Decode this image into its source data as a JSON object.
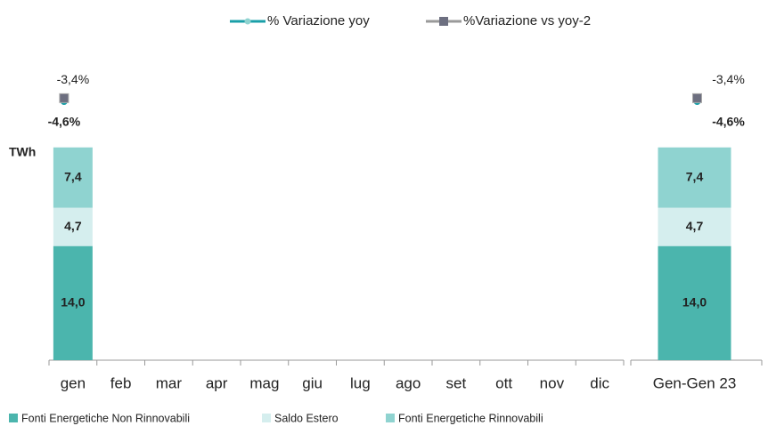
{
  "chart_data": {
    "type": "bar",
    "stacked": true,
    "y_label": "TWh",
    "categories": [
      "gen",
      "feb",
      "mar",
      "apr",
      "mag",
      "giu",
      "lug",
      "ago",
      "set",
      "ott",
      "nov",
      "dic",
      "Gen-Gen 23"
    ],
    "ylim": [
      0,
      30
    ],
    "y2lim": [
      -100,
      0
    ],
    "series": [
      {
        "name": "Fonti Energetiche Non Rinnovabili",
        "type": "bar",
        "color": "#4bb5ad",
        "values": [
          14.0,
          null,
          null,
          null,
          null,
          null,
          null,
          null,
          null,
          null,
          null,
          null,
          14.0
        ],
        "value_labels": [
          "14,0",
          null,
          null,
          null,
          null,
          null,
          null,
          null,
          null,
          null,
          null,
          null,
          "14,0"
        ]
      },
      {
        "name": "Saldo Estero",
        "type": "bar",
        "color": "#d5eeee",
        "values": [
          4.7,
          null,
          null,
          null,
          null,
          null,
          null,
          null,
          null,
          null,
          null,
          null,
          4.7
        ],
        "value_labels": [
          "4,7",
          null,
          null,
          null,
          null,
          null,
          null,
          null,
          null,
          null,
          null,
          null,
          "4,7"
        ]
      },
      {
        "name": "Fonti Energetiche Rinnovabili",
        "type": "bar",
        "color": "#8fd3d0",
        "values": [
          7.4,
          null,
          null,
          null,
          null,
          null,
          null,
          null,
          null,
          null,
          null,
          null,
          7.4
        ],
        "value_labels": [
          "7,4",
          null,
          null,
          null,
          null,
          null,
          null,
          null,
          null,
          null,
          null,
          null,
          "7,4"
        ]
      },
      {
        "name": "% Variazione yoy",
        "type": "line",
        "axis": "y2",
        "color": "#1a9fa8",
        "values": [
          -4.6,
          null,
          null,
          null,
          null,
          null,
          null,
          null,
          null,
          null,
          null,
          null,
          -4.6
        ],
        "value_labels": [
          "-4,6%",
          null,
          null,
          null,
          null,
          null,
          null,
          null,
          null,
          null,
          null,
          null,
          "-4,6%"
        ]
      },
      {
        "name": "%Variazione vs yoy-2",
        "type": "line",
        "axis": "y2",
        "color": "#9a9a9a",
        "marker_color": "#6d6f80",
        "values": [
          -3.4,
          null,
          null,
          null,
          null,
          null,
          null,
          null,
          null,
          null,
          null,
          null,
          -3.4
        ],
        "value_labels": [
          "-3,4%",
          null,
          null,
          null,
          null,
          null,
          null,
          null,
          null,
          null,
          null,
          null,
          "-3,4%"
        ]
      }
    ]
  }
}
